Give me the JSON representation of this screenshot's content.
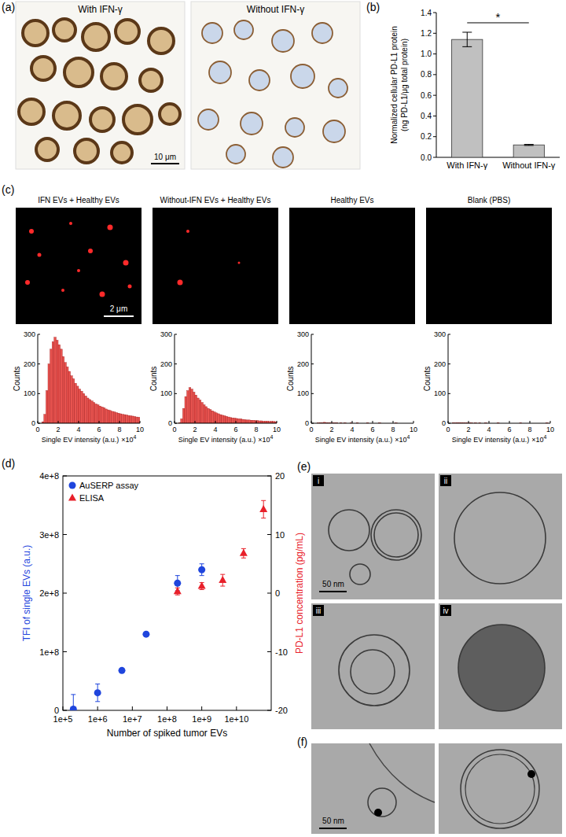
{
  "panel_labels": [
    "(a)",
    "(b)",
    "(c)",
    "(d)",
    "(e)",
    "(f)"
  ],
  "panel_a": {
    "images": [
      {
        "title": "With IFN-γ"
      },
      {
        "title": "Without IFN-γ"
      }
    ],
    "scale_bar": "10 μm"
  },
  "panel_c": {
    "scale_bar": "2 μm"
  },
  "chart_data": [
    {
      "type": "bar",
      "categories": [
        "With IFN-γ",
        "Without IFN-γ"
      ],
      "values": [
        1.14,
        0.12
      ],
      "errors": [
        0.07,
        0.005
      ],
      "color": "#c0c0c0",
      "ylabel": [
        "Normalized cellular PD-L1 protein",
        "(ng PD-L1/μg total protein)"
      ],
      "annotations": [
        "*"
      ],
      "ylim": [
        0,
        1.4
      ],
      "yticks": [
        {
          "value": 0,
          "label": "0.0"
        },
        0.2,
        0.4,
        0.6,
        0.8,
        {
          "value": 1,
          "label": "1.0"
        },
        1.2,
        1.4
      ]
    },
    {
      "type": "histogram",
      "title": "IFN EVs + Healthy EVs",
      "color": "#e8534f",
      "bins": [
        0,
        0.2,
        0.4,
        0.6,
        0.8,
        1,
        1.2,
        1.4,
        1.6,
        1.8,
        2,
        2.2,
        2.4,
        2.6,
        2.8,
        3,
        3.2,
        3.4,
        3.6,
        3.8,
        4,
        4.2,
        4.4,
        4.6,
        4.8,
        5,
        5.2,
        5.4,
        5.6,
        5.8,
        6,
        6.2,
        6.4,
        6.6,
        6.8,
        7,
        7.2,
        7.4,
        7.6,
        7.8,
        8,
        8.2,
        8.4,
        8.6,
        8.8,
        9,
        9.2,
        9.4,
        9.6,
        9.8,
        10
      ],
      "counts": [
        0,
        0,
        5,
        30,
        110,
        200,
        250,
        275,
        290,
        280,
        265,
        250,
        225,
        205,
        190,
        175,
        160,
        150,
        135,
        125,
        115,
        108,
        100,
        92,
        85,
        80,
        75,
        70,
        65,
        62,
        58,
        55,
        52,
        48,
        45,
        43,
        40,
        38,
        36,
        34,
        32,
        30,
        29,
        28,
        26,
        25,
        24,
        22,
        21,
        20
      ],
      "xlabel": "Single EV intensity (a.u.)",
      "ylabel": "Counts",
      "annotations": [
        {
          "text": "×10",
          "superscript": "4"
        }
      ],
      "xlim": [
        0,
        10
      ],
      "xticks": [
        0,
        2,
        4,
        6,
        8,
        10
      ],
      "ylim": [
        0,
        300
      ],
      "yticks": [
        0,
        100,
        200,
        300
      ]
    },
    {
      "type": "histogram",
      "title": "Without-IFN EVs + Healthy EVs",
      "color": "#e8534f",
      "bins": [
        0,
        0.2,
        0.4,
        0.6,
        0.8,
        1,
        1.2,
        1.4,
        1.6,
        1.8,
        2,
        2.2,
        2.4,
        2.6,
        2.8,
        3,
        3.2,
        3.4,
        3.6,
        3.8,
        4,
        4.2,
        4.4,
        4.6,
        4.8,
        5,
        5.2,
        5.4,
        5.6,
        5.8,
        6,
        6.2,
        6.4,
        6.6,
        6.8,
        7,
        7.2,
        7.4,
        7.6,
        7.8,
        8,
        8.2,
        8.4,
        8.6,
        8.8,
        9,
        9.2,
        9.4,
        9.6,
        9.8,
        10
      ],
      "counts": [
        0,
        0,
        2,
        15,
        50,
        90,
        110,
        120,
        115,
        105,
        95,
        85,
        78,
        70,
        62,
        56,
        50,
        46,
        42,
        38,
        35,
        32,
        29,
        27,
        25,
        23,
        21,
        19,
        18,
        17,
        16,
        15,
        14,
        13,
        12,
        11,
        11,
        10,
        10,
        9,
        9,
        8,
        8,
        7,
        7,
        7,
        6,
        6,
        6,
        5
      ],
      "xlabel": "Single EV intensity (a.u.)",
      "ylabel": "Counts",
      "annotations": [
        {
          "text": "×10",
          "superscript": "4"
        }
      ],
      "xlim": [
        0,
        10
      ],
      "xticks": [
        0,
        2,
        4,
        6,
        8,
        10
      ],
      "ylim": [
        0,
        300
      ],
      "yticks": [
        0,
        100,
        200,
        300
      ]
    },
    {
      "type": "histogram",
      "title": "Healthy EVs",
      "color": "#e8534f",
      "bins": [
        0,
        0.2,
        0.4,
        0.6,
        0.8,
        1,
        1.2,
        1.4,
        1.6,
        1.8,
        2,
        2.2,
        2.4,
        2.6,
        2.8,
        3,
        3.2,
        3.4,
        3.6,
        3.8,
        4,
        4.2,
        4.4,
        4.6,
        4.8,
        5,
        5.2,
        5.4,
        5.6,
        5.8,
        6,
        6.2,
        6.4,
        6.6,
        6.8,
        7,
        7.2,
        7.4,
        7.6,
        7.8,
        8,
        8.2,
        8.4,
        8.6,
        8.8,
        9,
        9.2,
        9.4,
        9.6,
        9.8,
        10
      ],
      "counts": [
        0,
        0,
        0,
        1,
        2,
        2,
        3,
        2,
        2,
        1,
        1,
        1,
        1,
        0,
        1,
        0,
        1,
        0,
        0,
        1,
        0,
        0,
        1,
        0,
        0,
        0,
        0,
        1,
        0,
        0,
        0,
        0,
        0,
        1,
        0,
        0,
        0,
        0,
        0,
        0,
        0,
        1,
        0,
        0,
        0,
        0,
        0,
        0,
        0,
        0
      ],
      "xlabel": "Single EV intensity (a.u.)",
      "ylabel": "Counts",
      "annotations": [
        {
          "text": "×10",
          "superscript": "4"
        }
      ],
      "xlim": [
        0,
        10
      ],
      "xticks": [
        0,
        2,
        4,
        6,
        8,
        10
      ],
      "ylim": [
        0,
        300
      ],
      "yticks": [
        0,
        100,
        200,
        300
      ]
    },
    {
      "type": "histogram",
      "title": "Blank (PBS)",
      "color": "#e8534f",
      "bins": [
        0,
        0.2,
        0.4,
        0.6,
        0.8,
        1,
        1.2,
        1.4,
        1.6,
        1.8,
        2,
        2.2,
        2.4,
        2.6,
        2.8,
        3,
        3.2,
        3.4,
        3.6,
        3.8,
        4,
        4.2,
        4.4,
        4.6,
        4.8,
        5,
        5.2,
        5.4,
        5.6,
        5.8,
        6,
        6.2,
        6.4,
        6.6,
        6.8,
        7,
        7.2,
        7.4,
        7.6,
        7.8,
        8,
        8.2,
        8.4,
        8.6,
        8.8,
        9,
        9.2,
        9.4,
        9.6,
        9.8,
        10
      ],
      "counts": [
        0,
        0,
        1,
        1,
        2,
        2,
        2,
        1,
        1,
        1,
        1,
        1,
        0,
        1,
        0,
        1,
        0,
        0,
        1,
        0,
        0,
        0,
        0,
        0,
        1,
        0,
        0,
        0,
        0,
        0,
        0,
        0,
        0,
        0,
        0,
        1,
        0,
        0,
        0,
        0,
        0,
        0,
        0,
        0,
        0,
        0,
        0,
        0,
        1,
        0
      ],
      "xlabel": "Single EV intensity (a.u.)",
      "ylabel": "Counts",
      "annotations": [
        {
          "text": "×10",
          "superscript": "4"
        }
      ],
      "xlim": [
        0,
        10
      ],
      "xticks": [
        0,
        2,
        4,
        6,
        8,
        10
      ],
      "ylim": [
        0,
        300
      ],
      "yticks": [
        0,
        100,
        200,
        300
      ]
    },
    {
      "type": "scatter",
      "xlabel": "Number of spiked tumor EVs",
      "ylabel": "TFI of single EVs (a.u.)",
      "y2label": "PD-L1 concentration (pg/mL)",
      "log": "x",
      "legend": "upper left",
      "xlim": [
        100000,
        100000000000
      ],
      "xticks": [
        {
          "value": 100000,
          "label": "1e+5"
        },
        {
          "value": 1000000,
          "label": "1e+6"
        },
        {
          "value": 10000000,
          "label": "1e+7"
        },
        {
          "value": 100000000,
          "label": "1e+8"
        },
        {
          "value": 1000000000,
          "label": "1e+9"
        },
        {
          "value": 10000000000,
          "label": "1e+10"
        }
      ],
      "ylim": [
        0,
        400000000
      ],
      "yticks": [
        0,
        {
          "value": 100000000,
          "label": "1e+8"
        },
        {
          "value": 200000000,
          "label": "2e+8"
        },
        {
          "value": 300000000,
          "label": "3e+8"
        },
        {
          "value": 400000000,
          "label": "4e+8"
        }
      ],
      "y2lim": [
        -20,
        20
      ],
      "y2ticks": [
        -20,
        -10,
        0,
        10,
        20
      ],
      "series": [
        {
          "name": "AuSERP assay",
          "color": "#1f45dd",
          "marker": "circle",
          "x": [
            200000,
            1000000,
            5000000,
            25000000,
            200000000,
            1000000000
          ],
          "values": [
            2000000,
            30000000,
            68000000,
            130000000,
            217000000,
            240000000
          ],
          "errors": [
            25000000,
            15000000,
            3000000,
            3000000,
            13000000,
            10000000
          ]
        },
        {
          "name": "ELISA",
          "color": "#e8202a",
          "marker": "triangle",
          "axis": "y2",
          "x": [
            200000000,
            1000000000,
            4000000000,
            16000000000,
            60000000000
          ],
          "values": [
            0.3,
            1.2,
            2.2,
            6.8,
            14.3
          ],
          "errors": [
            0.6,
            0.6,
            1.0,
            0.8,
            1.5
          ]
        }
      ]
    }
  ],
  "panel_e": {
    "labels": [
      "i",
      "ii",
      "iii",
      "iv"
    ],
    "scale_bar": "50 nm"
  },
  "panel_f": {
    "scale_bar": "50 nm"
  }
}
